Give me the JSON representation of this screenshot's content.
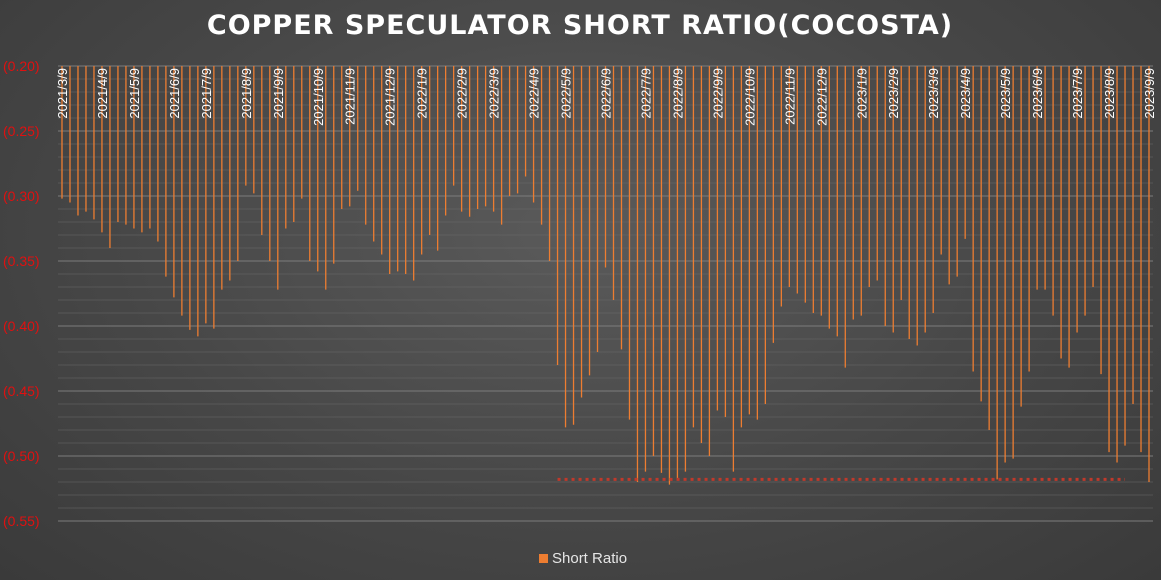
{
  "chart_data": {
    "type": "bar",
    "title": "COPPER SPECULATOR SHORT RATIO(COCOSTA)",
    "xlabel": "",
    "ylabel": "",
    "ylim": [
      -0.55,
      -0.2
    ],
    "yticks": [
      -0.2,
      -0.25,
      -0.3,
      -0.35,
      -0.4,
      -0.45,
      -0.5,
      -0.55
    ],
    "ytick_labels": [
      "(0.20)",
      "(0.25)",
      "(0.30)",
      "(0.35)",
      "(0.40)",
      "(0.45)",
      "(0.50)",
      "(0.55)"
    ],
    "x_tick_labels": [
      "2021/3/9",
      "2021/4/9",
      "2021/5/9",
      "2021/6/9",
      "2021/7/9",
      "2021/8/9",
      "2021/9/9",
      "2021/10/9",
      "2021/11/9",
      "2021/12/9",
      "2022/1/9",
      "2022/2/9",
      "2022/3/9",
      "2022/4/9",
      "2022/5/9",
      "2022/6/9",
      "2022/7/9",
      "2022/8/9",
      "2022/9/9",
      "2022/10/9",
      "2022/11/9",
      "2022/12/9",
      "2023/1/9",
      "2023/2/9",
      "2023/3/9",
      "2023/4/9",
      "2023/5/9",
      "2023/6/9",
      "2023/7/9",
      "2023/8/9",
      "2023/9/9"
    ],
    "series": [
      {
        "name": "Short Ratio",
        "color": "#ed7d31",
        "values": [
          -0.302,
          -0.305,
          -0.315,
          -0.312,
          -0.318,
          -0.328,
          -0.34,
          -0.32,
          -0.322,
          -0.325,
          -0.328,
          -0.325,
          -0.335,
          -0.362,
          -0.378,
          -0.392,
          -0.403,
          -0.408,
          -0.398,
          -0.402,
          -0.372,
          -0.365,
          -0.35,
          -0.292,
          -0.298,
          -0.33,
          -0.35,
          -0.372,
          -0.325,
          -0.32,
          -0.302,
          -0.35,
          -0.358,
          -0.372,
          -0.352,
          -0.31,
          -0.308,
          -0.296,
          -0.322,
          -0.335,
          -0.345,
          -0.36,
          -0.358,
          -0.36,
          -0.365,
          -0.345,
          -0.33,
          -0.342,
          -0.315,
          -0.292,
          -0.312,
          -0.316,
          -0.31,
          -0.308,
          -0.312,
          -0.322,
          -0.3,
          -0.298,
          -0.285,
          -0.305,
          -0.322,
          -0.35,
          -0.43,
          -0.478,
          -0.476,
          -0.455,
          -0.438,
          -0.42,
          -0.355,
          -0.38,
          -0.418,
          -0.472,
          -0.52,
          -0.512,
          -0.5,
          -0.513,
          -0.522,
          -0.518,
          -0.512,
          -0.478,
          -0.49,
          -0.5,
          -0.465,
          -0.47,
          -0.512,
          -0.478,
          -0.468,
          -0.472,
          -0.46,
          -0.413,
          -0.385,
          -0.37,
          -0.375,
          -0.382,
          -0.39,
          -0.392,
          -0.402,
          -0.408,
          -0.432,
          -0.395,
          -0.392,
          -0.37,
          -0.365,
          -0.4,
          -0.405,
          -0.38,
          -0.41,
          -0.415,
          -0.405,
          -0.39,
          -0.345,
          -0.368,
          -0.362,
          -0.333,
          -0.435,
          -0.458,
          -0.48,
          -0.518,
          -0.505,
          -0.502,
          -0.462,
          -0.435,
          -0.372,
          -0.372,
          -0.392,
          -0.425,
          -0.432,
          -0.405,
          -0.392,
          -0.37,
          -0.437,
          -0.497,
          -0.505,
          -0.492,
          -0.46,
          -0.497,
          -0.52
        ]
      }
    ],
    "reference_line": {
      "value": -0.518,
      "from_index": 62,
      "to_index": 133,
      "style": "dotted",
      "color": "#c0392b"
    },
    "legend": {
      "position": "bottom",
      "entries": [
        "Short Ratio"
      ]
    },
    "grid": true
  }
}
